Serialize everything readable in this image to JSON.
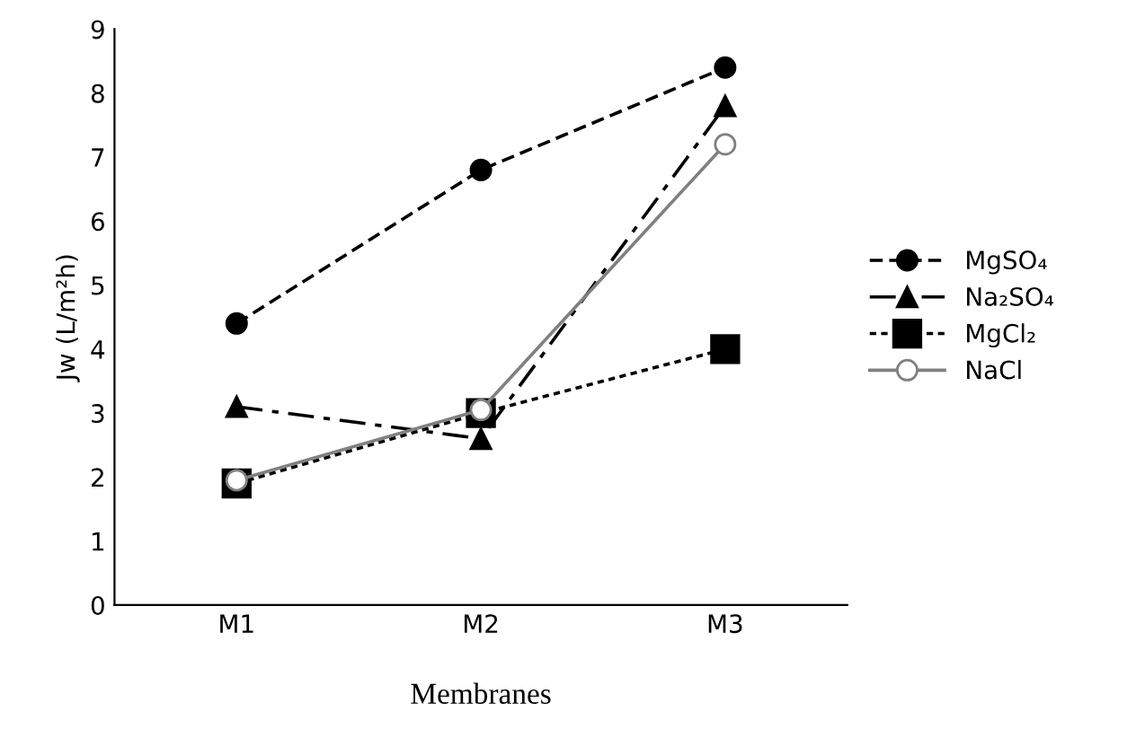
{
  "chart_data": {
    "type": "line",
    "xlabel": "Membranes",
    "ylabel": "Jw (L/m²h)",
    "categories": [
      "M1",
      "M2",
      "M3"
    ],
    "series": [
      {
        "name": "MgSO₄",
        "color": "#000000",
        "values": [
          4.4,
          6.8,
          8.4
        ],
        "marker": "circle",
        "line_style": "dashed"
      },
      {
        "name": "Na₂SO₄",
        "color": "#000000",
        "values": [
          3.1,
          2.6,
          7.8
        ],
        "marker": "triangle",
        "line_style": "dashdot"
      },
      {
        "name": "MgCl₂",
        "color": "#000000",
        "values": [
          1.9,
          3.0,
          4.0
        ],
        "marker": "square",
        "line_style": "dotted"
      },
      {
        "name": "NaCl",
        "color": "#808080",
        "values": [
          1.95,
          3.05,
          7.2
        ],
        "marker": "open circle",
        "line_style": "solid"
      }
    ],
    "ylim": [
      0,
      9
    ],
    "yticks": [
      0,
      1,
      2,
      3,
      4,
      5,
      6,
      7,
      8,
      9
    ],
    "grid": false,
    "legend": "right"
  }
}
